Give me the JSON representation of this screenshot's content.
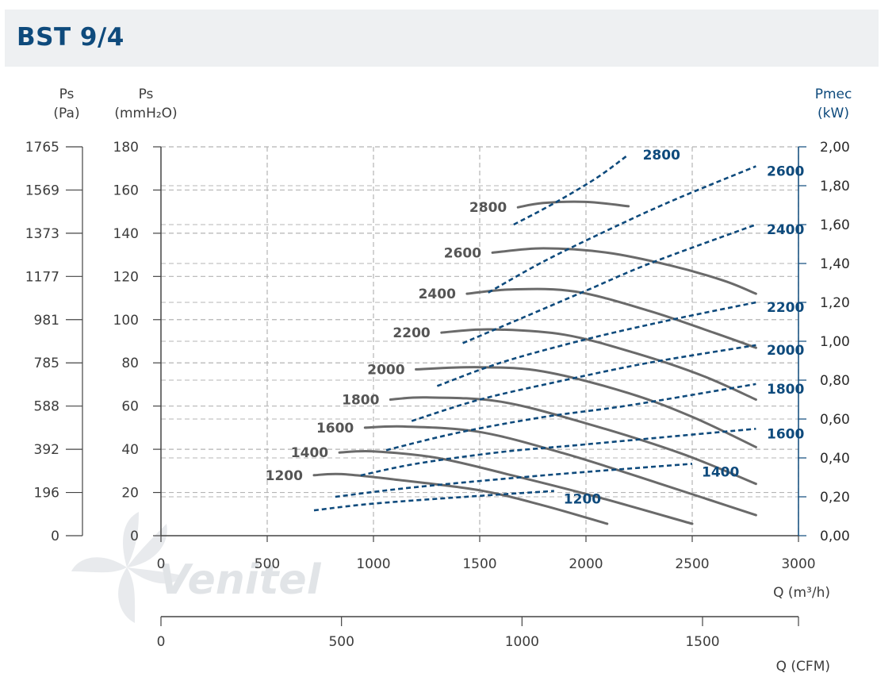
{
  "header": {
    "title": "BST 9/4"
  },
  "watermark": {
    "text": "Venitel",
    "icon": "fan-blade-icon"
  },
  "colors": {
    "pressure_curve": "#6a6a6a",
    "power_curve": "#0e4a7c",
    "grid": "#b4b4b4",
    "title": "#0e4a7c"
  },
  "chart_data": {
    "type": "line",
    "x_axis_primary": {
      "label": "Q (m³/h)",
      "range": [
        0,
        3000
      ],
      "ticks": [
        "0",
        "500",
        "1000",
        "1500",
        "2000",
        "2500",
        "3000"
      ]
    },
    "x_axis_secondary": {
      "label": "Q (CFM)",
      "ticks": [
        "0",
        "500",
        "1000",
        "1500"
      ]
    },
    "y_axis_left_pa": {
      "label_line1": "Ps",
      "label_line2": "(Pa)",
      "ticks": [
        "0",
        "196",
        "392",
        "588",
        "785",
        "981",
        "1177",
        "1373",
        "1569",
        "1765"
      ]
    },
    "y_axis_left_mm": {
      "label_line1": "Ps",
      "label_line2": "(mmH₂O)",
      "range": [
        0,
        180
      ],
      "ticks": [
        "0",
        "20",
        "40",
        "60",
        "80",
        "100",
        "120",
        "140",
        "160",
        "180"
      ]
    },
    "y_axis_right": {
      "label_line1": "Pmec",
      "label_line2": "(kW)",
      "range": [
        0,
        2.0
      ],
      "ticks": [
        "0,00",
        "0,20",
        "0,40",
        "0,60",
        "0,80",
        "1,00",
        "1,20",
        "1,40",
        "1,60",
        "1,80",
        "2,00"
      ]
    },
    "grid": true,
    "pressure_series": [
      {
        "name": "1200",
        "points": [
          [
            720,
            28
          ],
          [
            850,
            28.5
          ],
          [
            1100,
            26
          ],
          [
            1500,
            21
          ],
          [
            1800,
            14
          ],
          [
            2100,
            5.5
          ]
        ]
      },
      {
        "name": "1400",
        "points": [
          [
            840,
            38.5
          ],
          [
            1000,
            39
          ],
          [
            1300,
            36
          ],
          [
            1650,
            28
          ],
          [
            2050,
            18
          ],
          [
            2500,
            5.5
          ]
        ]
      },
      {
        "name": "1600",
        "points": [
          [
            960,
            50
          ],
          [
            1150,
            50.5
          ],
          [
            1500,
            48
          ],
          [
            1900,
            38
          ],
          [
            2350,
            24
          ],
          [
            2800,
            9.5
          ]
        ]
      },
      {
        "name": "1800",
        "points": [
          [
            1080,
            63
          ],
          [
            1250,
            64
          ],
          [
            1600,
            62
          ],
          [
            2000,
            52
          ],
          [
            2450,
            38
          ],
          [
            2800,
            24
          ]
        ]
      },
      {
        "name": "2000",
        "points": [
          [
            1200,
            77
          ],
          [
            1500,
            78
          ],
          [
            1800,
            76
          ],
          [
            2200,
            66
          ],
          [
            2500,
            55
          ],
          [
            2800,
            41
          ]
        ]
      },
      {
        "name": "2200",
        "points": [
          [
            1320,
            94
          ],
          [
            1550,
            95.5
          ],
          [
            1900,
            93
          ],
          [
            2250,
            84
          ],
          [
            2550,
            74
          ],
          [
            2800,
            63
          ]
        ]
      },
      {
        "name": "2400",
        "points": [
          [
            1440,
            112
          ],
          [
            1650,
            114
          ],
          [
            1950,
            113
          ],
          [
            2300,
            104
          ],
          [
            2600,
            94
          ],
          [
            2800,
            87
          ]
        ]
      },
      {
        "name": "2600",
        "points": [
          [
            1560,
            131
          ],
          [
            1800,
            133
          ],
          [
            2100,
            131
          ],
          [
            2400,
            125
          ],
          [
            2650,
            118
          ],
          [
            2800,
            112
          ]
        ]
      },
      {
        "name": "2800",
        "points": [
          [
            1680,
            152
          ],
          [
            1800,
            154
          ],
          [
            2000,
            154.5
          ],
          [
            2200,
            152.5
          ]
        ]
      }
    ],
    "power_series": [
      {
        "name": "1200",
        "points": [
          [
            720,
            0.13
          ],
          [
            1000,
            0.165
          ],
          [
            1500,
            0.205
          ],
          [
            1850,
            0.23
          ]
        ]
      },
      {
        "name": "1400",
        "points": [
          [
            820,
            0.2
          ],
          [
            1200,
            0.25
          ],
          [
            1800,
            0.31
          ],
          [
            2500,
            0.37
          ]
        ]
      },
      {
        "name": "1600",
        "points": [
          [
            940,
            0.31
          ],
          [
            1200,
            0.37
          ],
          [
            1600,
            0.43
          ],
          [
            2000,
            0.47
          ],
          [
            2800,
            0.55
          ]
        ]
      },
      {
        "name": "1800",
        "points": [
          [
            1060,
            0.44
          ],
          [
            1400,
            0.53
          ],
          [
            1800,
            0.61
          ],
          [
            2200,
            0.67
          ],
          [
            2800,
            0.78
          ]
        ]
      },
      {
        "name": "2000",
        "points": [
          [
            1180,
            0.59
          ],
          [
            1500,
            0.7
          ],
          [
            1900,
            0.8
          ],
          [
            2300,
            0.89
          ],
          [
            2800,
            0.98
          ]
        ]
      },
      {
        "name": "2200",
        "points": [
          [
            1300,
            0.77
          ],
          [
            1600,
            0.89
          ],
          [
            2000,
            1.01
          ],
          [
            2400,
            1.11
          ],
          [
            2800,
            1.2
          ]
        ]
      },
      {
        "name": "2400",
        "points": [
          [
            1420,
            0.99
          ],
          [
            1700,
            1.12
          ],
          [
            2000,
            1.26
          ],
          [
            2300,
            1.4
          ],
          [
            2800,
            1.6
          ]
        ]
      },
      {
        "name": "2600",
        "points": [
          [
            1540,
            1.25
          ],
          [
            1800,
            1.41
          ],
          [
            2100,
            1.57
          ],
          [
            2400,
            1.72
          ],
          [
            2800,
            1.9
          ]
        ]
      },
      {
        "name": "2800",
        "points": [
          [
            1660,
            1.6
          ],
          [
            1850,
            1.71
          ],
          [
            2050,
            1.84
          ],
          [
            2200,
            1.96
          ]
        ]
      }
    ]
  }
}
